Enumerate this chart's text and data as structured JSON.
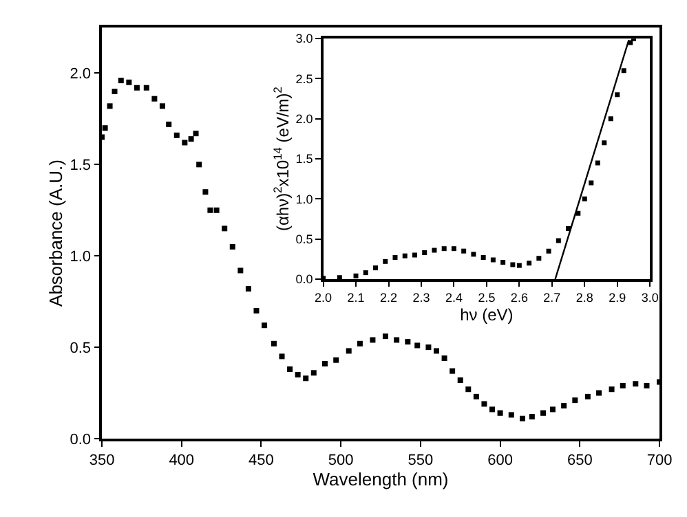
{
  "chart_data": [
    {
      "type": "scatter",
      "xlabel": "Wavelength (nm)",
      "ylabel": "Absorbance (A.U.)",
      "marker": "square",
      "xlim": [
        350,
        700
      ],
      "xticks": [
        350,
        400,
        450,
        500,
        550,
        600,
        650,
        700
      ],
      "ylim": [
        0,
        2.25
      ],
      "yticks": [
        {
          "value": 0,
          "label": "0.0"
        },
        {
          "value": 0.5,
          "label": "0.5"
        },
        {
          "value": 1,
          "label": "1.0"
        },
        {
          "value": 1.5,
          "label": "1.5"
        },
        {
          "value": 2,
          "label": "2.0"
        }
      ],
      "series": [
        {
          "color": "#000000",
          "x": [
            350,
            352,
            355,
            358,
            362,
            367,
            372,
            378,
            383,
            388,
            392,
            397,
            402,
            406,
            409,
            411,
            415,
            418,
            422,
            427,
            432,
            437,
            442,
            447,
            452,
            458,
            463,
            468,
            473,
            478,
            483,
            490,
            497,
            505,
            512,
            520,
            528,
            535,
            542,
            548,
            555,
            560,
            565,
            570,
            575,
            580,
            585,
            590,
            595,
            600,
            607,
            614,
            620,
            627,
            633,
            640,
            647,
            655,
            662,
            670,
            677,
            685,
            692,
            700
          ],
          "values": [
            1.65,
            1.7,
            1.82,
            1.9,
            1.96,
            1.95,
            1.92,
            1.92,
            1.86,
            1.82,
            1.72,
            1.66,
            1.62,
            1.64,
            1.67,
            1.5,
            1.35,
            1.25,
            1.25,
            1.15,
            1.05,
            0.92,
            0.82,
            0.7,
            0.62,
            0.52,
            0.45,
            0.38,
            0.35,
            0.33,
            0.36,
            0.41,
            0.43,
            0.48,
            0.52,
            0.54,
            0.56,
            0.54,
            0.53,
            0.51,
            0.5,
            0.48,
            0.44,
            0.37,
            0.32,
            0.27,
            0.23,
            0.19,
            0.16,
            0.14,
            0.13,
            0.11,
            0.12,
            0.14,
            0.16,
            0.18,
            0.21,
            0.23,
            0.25,
            0.27,
            0.29,
            0.3,
            0.29,
            0.31
          ]
        }
      ]
    },
    {
      "type": "scatter",
      "xlabel": "hν (eV)",
      "ylabel": "(αhν)$^{2}$x10$^{14}$ (eV/m)$^{2}$",
      "xlim": [
        2.0,
        3.0
      ],
      "xticks": [
        {
          "value": 2,
          "label": "2.0"
        },
        2.1,
        2.2,
        2.3,
        2.4,
        2.5,
        2.6,
        2.7,
        2.8,
        2.9,
        {
          "value": 3,
          "label": "3.0"
        }
      ],
      "ylim": [
        0,
        3.0
      ],
      "yticks": [
        {
          "value": 0,
          "label": "0.0"
        },
        {
          "value": 0.5,
          "label": "0.5"
        },
        {
          "value": 1,
          "label": "1.0"
        },
        {
          "value": 1.5,
          "label": "1.5"
        },
        {
          "value": 2,
          "label": "2.0"
        },
        {
          "value": 2.5,
          "label": "2.5"
        },
        {
          "value": 3,
          "label": "3.0"
        }
      ],
      "series": [
        {
          "color": "#000000",
          "marker": "square",
          "x": [
            2.0,
            2.05,
            2.1,
            2.13,
            2.16,
            2.19,
            2.22,
            2.25,
            2.28,
            2.31,
            2.34,
            2.37,
            2.4,
            2.43,
            2.46,
            2.49,
            2.52,
            2.55,
            2.58,
            2.6,
            2.63,
            2.66,
            2.69,
            2.72,
            2.75,
            2.78,
            2.8,
            2.82,
            2.84,
            2.86,
            2.88,
            2.9,
            2.92,
            2.94,
            2.95
          ],
          "values": [
            0.01,
            0.02,
            0.04,
            0.08,
            0.14,
            0.22,
            0.27,
            0.29,
            0.3,
            0.33,
            0.36,
            0.38,
            0.38,
            0.35,
            0.31,
            0.27,
            0.24,
            0.21,
            0.18,
            0.17,
            0.2,
            0.26,
            0.35,
            0.48,
            0.63,
            0.82,
            1.0,
            1.2,
            1.45,
            1.7,
            2.0,
            2.3,
            2.6,
            2.95,
            3.0
          ]
        },
        {
          "type": "line",
          "marker": "none",
          "color": "#000000",
          "x": [
            2.71,
            2.935
          ],
          "values": [
            0,
            2.98
          ]
        }
      ]
    }
  ]
}
